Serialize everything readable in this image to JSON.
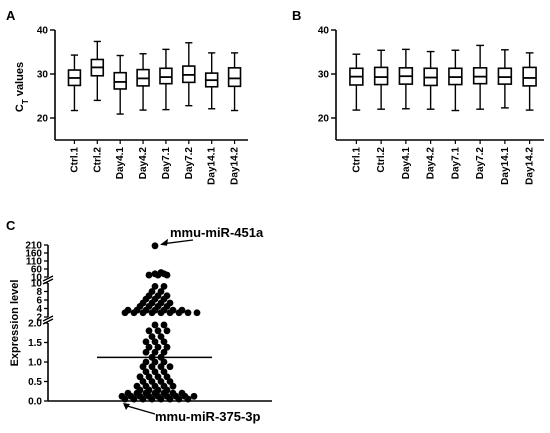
{
  "chart_data": [
    {
      "panel": "A",
      "type": "boxplot",
      "ylabel": "C",
      "ylabel_sub": "T",
      "ylabel_rest": " values",
      "ylim": [
        15,
        40
      ],
      "yticks": [
        20,
        30,
        40
      ],
      "categories": [
        "Ctrl.1",
        "Ctrl.2",
        "Day4.1",
        "Day4.2",
        "Day7.1",
        "Day7.2",
        "Day14.1",
        "Day14.2"
      ],
      "boxes": [
        {
          "min": 21.7,
          "q1": 27.4,
          "median": 29.1,
          "q3": 30.9,
          "max": 34.3
        },
        {
          "min": 24.0,
          "q1": 29.6,
          "median": 31.5,
          "q3": 33.3,
          "max": 37.4
        },
        {
          "min": 20.9,
          "q1": 26.6,
          "median": 28.2,
          "q3": 30.3,
          "max": 34.2
        },
        {
          "min": 21.8,
          "q1": 27.3,
          "median": 29.0,
          "q3": 31.0,
          "max": 34.6
        },
        {
          "min": 21.9,
          "q1": 27.8,
          "median": 29.3,
          "q3": 31.3,
          "max": 35.6
        },
        {
          "min": 22.8,
          "q1": 28.1,
          "median": 29.8,
          "q3": 31.8,
          "max": 37.1
        },
        {
          "min": 22.1,
          "q1": 27.1,
          "median": 28.6,
          "q3": 30.2,
          "max": 34.8
        },
        {
          "min": 21.7,
          "q1": 27.2,
          "median": 29.0,
          "q3": 31.4,
          "max": 34.8
        }
      ]
    },
    {
      "panel": "B",
      "type": "boxplot",
      "ylim": [
        15,
        40
      ],
      "yticks": [
        20,
        30,
        40
      ],
      "categories": [
        "Ctrl.1",
        "Ctrl.2",
        "Day4.1",
        "Day4.2",
        "Day7.1",
        "Day7.2",
        "Day14.1",
        "Day14.2"
      ],
      "boxes": [
        {
          "min": 21.8,
          "q1": 27.5,
          "median": 29.4,
          "q3": 31.3,
          "max": 34.5
        },
        {
          "min": 22.0,
          "q1": 27.6,
          "median": 29.3,
          "q3": 31.5,
          "max": 35.4
        },
        {
          "min": 22.1,
          "q1": 27.7,
          "median": 29.5,
          "q3": 31.4,
          "max": 35.6
        },
        {
          "min": 22.0,
          "q1": 27.4,
          "median": 29.2,
          "q3": 31.3,
          "max": 35.1
        },
        {
          "min": 21.7,
          "q1": 27.6,
          "median": 29.3,
          "q3": 31.3,
          "max": 35.4
        },
        {
          "min": 22.0,
          "q1": 27.8,
          "median": 29.4,
          "q3": 31.4,
          "max": 36.5
        },
        {
          "min": 22.3,
          "q1": 27.7,
          "median": 29.3,
          "q3": 31.3,
          "max": 35.5
        },
        {
          "min": 21.8,
          "q1": 27.3,
          "median": 29.1,
          "q3": 31.5,
          "max": 34.8
        }
      ]
    },
    {
      "panel": "C",
      "type": "scatter",
      "ylabel": "Expression level",
      "y_segments": [
        {
          "range": [
            0.0,
            2.0
          ],
          "ticks": [
            0.0,
            0.5,
            1.0,
            1.5,
            2.0
          ],
          "labels": [
            "0.0",
            "0.5",
            "1.0",
            "1.5",
            "2.0"
          ]
        },
        {
          "range": [
            2,
            10
          ],
          "ticks": [
            2,
            4,
            6,
            8,
            10
          ],
          "labels": [
            "2",
            "4",
            "6",
            "8",
            "10"
          ]
        },
        {
          "range": [
            10,
            210
          ],
          "ticks": [
            10,
            60,
            110,
            160,
            210
          ],
          "labels": [
            "10",
            "60",
            "110",
            "160",
            "210"
          ]
        }
      ],
      "mean_line": 1.12,
      "points": {
        "s0": [
          [
            -10,
            0.05
          ],
          [
            -7,
            0.05
          ],
          [
            -4,
            0.05
          ],
          [
            -1,
            0.05
          ],
          [
            2,
            0.05
          ],
          [
            5,
            0.05
          ],
          [
            8,
            0.05
          ],
          [
            11,
            0.05
          ],
          [
            -11,
            0.12
          ],
          [
            -8,
            0.12
          ],
          [
            -5,
            0.12
          ],
          [
            -2,
            0.12
          ],
          [
            1,
            0.12
          ],
          [
            4,
            0.12
          ],
          [
            7,
            0.12
          ],
          [
            10,
            0.12
          ],
          [
            13,
            0.12
          ],
          [
            -9,
            0.2
          ],
          [
            -6,
            0.2
          ],
          [
            -3,
            0.2
          ],
          [
            0,
            0.2
          ],
          [
            3,
            0.2
          ],
          [
            6,
            0.2
          ],
          [
            9,
            0.2
          ],
          [
            -5,
            0.28
          ],
          [
            -2,
            0.28
          ],
          [
            1,
            0.28
          ],
          [
            4,
            0.28
          ],
          [
            -6,
            0.38
          ],
          [
            -3,
            0.38
          ],
          [
            0,
            0.38
          ],
          [
            3,
            0.38
          ],
          [
            6,
            0.38
          ],
          [
            -4,
            0.5
          ],
          [
            -1,
            0.5
          ],
          [
            2,
            0.5
          ],
          [
            5,
            0.5
          ],
          [
            -5,
            0.62
          ],
          [
            -2,
            0.62
          ],
          [
            1,
            0.62
          ],
          [
            4,
            0.62
          ],
          [
            -3,
            0.75
          ],
          [
            0,
            0.75
          ],
          [
            3,
            0.75
          ],
          [
            -4,
            0.88
          ],
          [
            -1,
            0.88
          ],
          [
            2,
            0.88
          ],
          [
            5,
            0.88
          ],
          [
            -3,
            1.0
          ],
          [
            0,
            1.0
          ],
          [
            3,
            1.0
          ],
          [
            -1,
            1.12
          ],
          [
            2,
            1.12
          ],
          [
            -3,
            1.25
          ],
          [
            0,
            1.25
          ],
          [
            3,
            1.25
          ],
          [
            -2,
            1.38
          ],
          [
            1,
            1.38
          ],
          [
            4,
            1.38
          ],
          [
            -3,
            1.52
          ],
          [
            0,
            1.52
          ],
          [
            3,
            1.52
          ],
          [
            -1,
            1.65
          ],
          [
            2,
            1.65
          ],
          [
            -2,
            1.8
          ],
          [
            1,
            1.8
          ],
          [
            4,
            1.8
          ],
          [
            0,
            1.95
          ],
          [
            3,
            1.95
          ]
        ],
        "s1": [
          [
            -10,
            3.0
          ],
          [
            -7,
            3.0
          ],
          [
            -4,
            3.0
          ],
          [
            -1,
            3.0
          ],
          [
            2,
            3.0
          ],
          [
            5,
            3.0
          ],
          [
            8,
            3.0
          ],
          [
            11,
            3.0
          ],
          [
            14,
            3.0
          ],
          [
            -9,
            3.6
          ],
          [
            -6,
            3.6
          ],
          [
            -3,
            3.6
          ],
          [
            0,
            3.6
          ],
          [
            3,
            3.6
          ],
          [
            6,
            3.6
          ],
          [
            9,
            3.6
          ],
          [
            -5,
            4.5
          ],
          [
            -2,
            4.5
          ],
          [
            1,
            4.5
          ],
          [
            4,
            4.5
          ],
          [
            -4,
            5.3
          ],
          [
            -1,
            5.3
          ],
          [
            2,
            5.3
          ],
          [
            5,
            5.3
          ],
          [
            -3,
            6.2
          ],
          [
            0,
            6.2
          ],
          [
            3,
            6.2
          ],
          [
            -2,
            7.0
          ],
          [
            1,
            7.0
          ],
          [
            4,
            7.0
          ],
          [
            -1,
            8.0
          ],
          [
            2,
            8.0
          ],
          [
            0,
            9.2
          ],
          [
            3,
            9.2
          ]
        ],
        "s2": [
          [
            -2,
            22
          ],
          [
            1,
            22
          ],
          [
            4,
            22
          ],
          [
            0,
            30
          ],
          [
            3,
            30
          ],
          [
            2,
            38
          ],
          [
            0,
            205
          ]
        ]
      },
      "annotations": [
        {
          "text": "mmu-miR-451a",
          "target": [
            0,
            205
          ]
        },
        {
          "text": "mmu-miR-375-3p",
          "target": [
            -11,
            0.05
          ]
        }
      ]
    }
  ]
}
